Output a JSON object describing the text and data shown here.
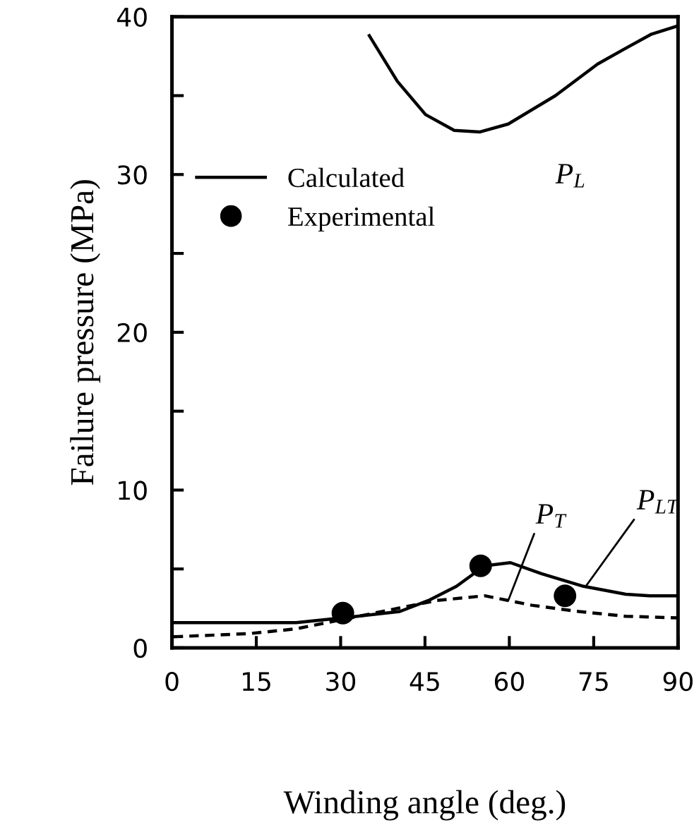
{
  "chart_data": {
    "type": "line",
    "xlabel": "Winding angle (deg.)",
    "ylabel": "Failure pressure (MPa)",
    "xlim": [
      0,
      90
    ],
    "xticks": [
      0,
      15,
      30,
      45,
      60,
      75,
      90
    ],
    "ylim": [
      0,
      40
    ],
    "yticks": [
      0,
      {
        "value": 5,
        "label": null
      },
      10,
      {
        "value": 15,
        "label": null
      },
      20,
      {
        "value": 25,
        "label": null
      },
      30,
      {
        "value": 35,
        "label": null
      },
      40
    ],
    "grid": false,
    "legend": "top left",
    "series": [
      {
        "name": "Calculated",
        "color": "#000000",
        "line_style": "solid",
        "x": [
          35.1,
          40.1,
          45.1,
          50.2,
          54.8,
          59.8,
          68.2,
          75.7,
          80.7,
          85.3,
          89.8
        ],
        "values": [
          38.8,
          35.9,
          33.8,
          32.8,
          32.7,
          33.2,
          35.0,
          37.0,
          38.0,
          38.9,
          39.4
        ]
      },
      {
        "color": "#000000",
        "line_style": "solid",
        "x": [
          0.3,
          22.1,
          33,
          40.5,
          45.6,
          50.6,
          55.6,
          60.2,
          65.7,
          73.2,
          80.7,
          85,
          90
        ],
        "values": [
          1.6,
          1.6,
          2.0,
          2.3,
          3.0,
          3.9,
          5.2,
          5.4,
          4.7,
          3.9,
          3.4,
          3.3,
          3.3
        ]
      },
      {
        "color": "#000000",
        "line_style": "dashed",
        "x": [
          0.3,
          13.7,
          22,
          30.4,
          38.7,
          47.1,
          55.6,
          64,
          72.4,
          80.7,
          90
        ],
        "values": [
          0.7,
          0.9,
          1.2,
          1.8,
          2.4,
          3.0,
          3.3,
          2.7,
          2.3,
          2.0,
          1.9
        ]
      },
      {
        "name": "Experimental",
        "type": "scatter",
        "color": "#000000",
        "marker": "circle",
        "x": [
          30.4,
          54.9,
          69.9
        ],
        "values": [
          2.2,
          5.2,
          3.3
        ]
      }
    ],
    "annotations": [
      {
        "text": "P$_{L}$",
        "x": 68.2,
        "y": 35.0
      },
      {
        "text": "P$_{T}$",
        "x": 59.8,
        "y": 3.0
      },
      {
        "text": "P$_{LT}$",
        "x": 73.6,
        "y": 3.9
      }
    ]
  }
}
